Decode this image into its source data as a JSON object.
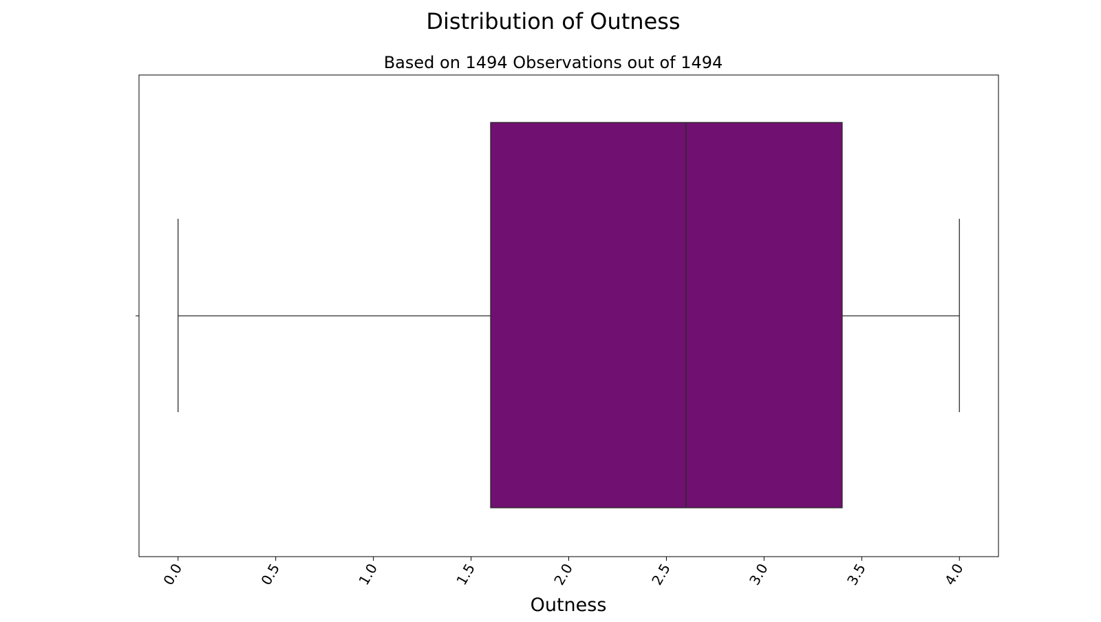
{
  "chart_data": {
    "type": "box",
    "title": "Distribution of Outness",
    "subtitle": "Based on 1494 Observations out of 1494",
    "xlabel": "Outness",
    "ylabel": "",
    "xlim": [
      -0.2,
      4.2
    ],
    "xticks": [
      0.0,
      0.5,
      1.0,
      1.5,
      2.0,
      2.5,
      3.0,
      3.5,
      4.0
    ],
    "xtick_labels": [
      "0.0",
      "0.5",
      "1.0",
      "1.5",
      "2.0",
      "2.5",
      "3.0",
      "3.5",
      "4.0"
    ],
    "box": {
      "whisker_low": 0.0,
      "q1": 1.6,
      "median": 2.6,
      "q3": 3.4,
      "whisker_high": 4.0
    },
    "orientation": "horizontal",
    "fill_color": "#701070",
    "line_color": "#2b2b2b",
    "grid": false,
    "legend": "none"
  }
}
